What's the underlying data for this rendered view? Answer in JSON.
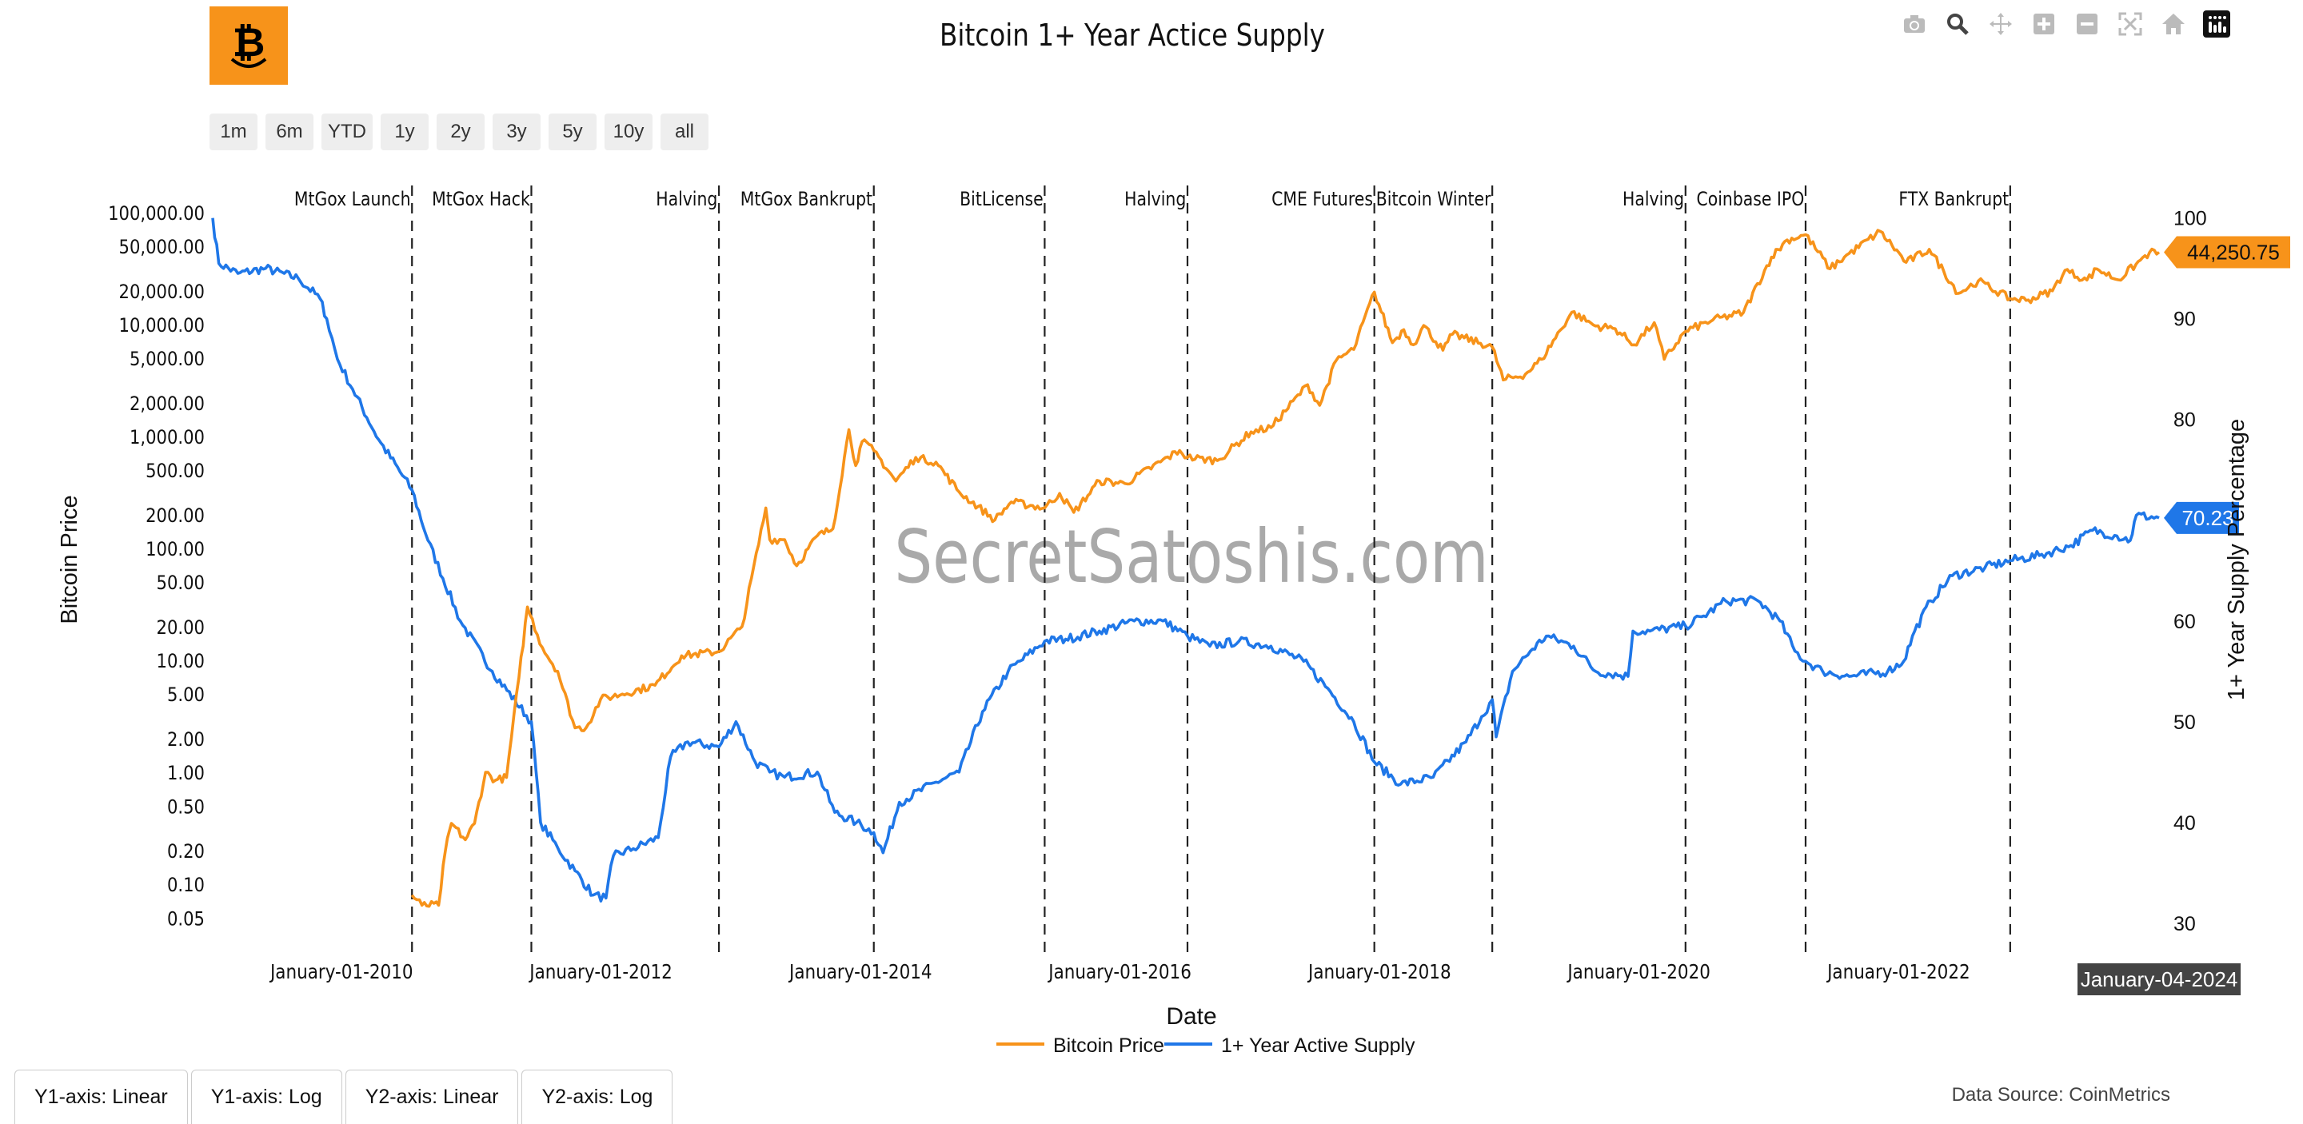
{
  "page": {
    "title": "Bitcoin 1+ Year Actice Supply",
    "logo_icon": "bitcoin-smile-logo-icon",
    "range_buttons": [
      "1m",
      "6m",
      "YTD",
      "1y",
      "2y",
      "3y",
      "5y",
      "10y",
      "all"
    ],
    "modebar_icons": [
      "camera-icon",
      "zoom-icon",
      "pan-icon",
      "zoom-in-icon",
      "zoom-out-icon",
      "autoscale-icon",
      "home-icon",
      "plotly-logo-icon"
    ],
    "axis_buttons": [
      "Y1-axis: Linear",
      "Y1-axis: Log",
      "Y2-axis: Linear",
      "Y2-axis: Log"
    ],
    "source": "Data Source: CoinMetrics",
    "watermark": "SecretSatoshis.com",
    "hover_date": "January-04-2024",
    "colors": {
      "price": "#f7931a",
      "supply": "#1f77e8",
      "logo": "#f7931a"
    }
  },
  "chart_data": {
    "type": "line",
    "title": "Bitcoin 1+ Year Actice Supply",
    "xlabel": "Date",
    "ylabel": "Bitcoin Price",
    "y2label": "1+ Year Supply Percentage",
    "x_ticks": [
      "January-01-2010",
      "January-01-2012",
      "January-01-2014",
      "January-01-2016",
      "January-01-2018",
      "January-01-2020",
      "January-01-2022"
    ],
    "y_ticks": [
      "100,000.00",
      "50,000.00",
      "20,000.00",
      "10,000.00",
      "5,000.00",
      "2,000.00",
      "1,000.00",
      "500.00",
      "200.00",
      "100.00",
      "50.00",
      "20.00",
      "10.00",
      "5.00",
      "2.00",
      "1.00",
      "0.50",
      "0.20",
      "0.10",
      "0.05"
    ],
    "y2_ticks": [
      "100",
      "90",
      "80",
      "70",
      "60",
      "50",
      "40",
      "30"
    ],
    "y_scale": "log",
    "ylim": [
      0.035,
      130000
    ],
    "y2lim": [
      28.8,
      101.8
    ],
    "xlim": [
      "2009-01-03",
      "2024-01-04"
    ],
    "grid": false,
    "legend_position": "bottom-center",
    "events": [
      {
        "label": "MtGox Launch",
        "date": "2010-07-18"
      },
      {
        "label": "MtGox Hack",
        "date": "2011-06-19"
      },
      {
        "label": "Halving",
        "date": "2012-11-28"
      },
      {
        "label": "MtGox Bankrupt",
        "date": "2014-02-07"
      },
      {
        "label": "BitLicense",
        "date": "2015-06-03"
      },
      {
        "label": "Halving",
        "date": "2016-07-09"
      },
      {
        "label": "CME Futures",
        "date": "2017-12-17"
      },
      {
        "label": "Bitcoin Winter",
        "date": "2018-11-14"
      },
      {
        "label": "Halving",
        "date": "2020-05-11"
      },
      {
        "label": "Coinbase IPO",
        "date": "2021-04-14"
      },
      {
        "label": "FTX Bankrupt",
        "date": "2022-11-11"
      }
    ],
    "series": [
      {
        "name": "Bitcoin Price",
        "axis": "y",
        "last_label": "44,250.75",
        "points": [
          [
            "2010-07-18",
            0.08
          ],
          [
            "2010-08-15",
            0.065
          ],
          [
            "2010-10-01",
            0.065
          ],
          [
            "2010-10-20",
            0.2
          ],
          [
            "2010-11-06",
            0.35
          ],
          [
            "2010-12-15",
            0.25
          ],
          [
            "2011-01-10",
            0.35
          ],
          [
            "2011-02-10",
            1.0
          ],
          [
            "2011-03-10",
            0.85
          ],
          [
            "2011-04-10",
            0.9
          ],
          [
            "2011-05-15",
            7
          ],
          [
            "2011-06-08",
            30
          ],
          [
            "2011-07-20",
            13
          ],
          [
            "2011-09-01",
            8
          ],
          [
            "2011-10-20",
            2.5
          ],
          [
            "2011-11-20",
            2.5
          ],
          [
            "2011-12-31",
            4.5
          ],
          [
            "2012-03-01",
            5
          ],
          [
            "2012-06-01",
            6
          ],
          [
            "2012-08-15",
            11
          ],
          [
            "2012-11-28",
            12
          ],
          [
            "2013-02-01",
            20
          ],
          [
            "2013-04-09",
            230
          ],
          [
            "2013-04-20",
            120
          ],
          [
            "2013-06-01",
            120
          ],
          [
            "2013-07-05",
            70
          ],
          [
            "2013-09-01",
            130
          ],
          [
            "2013-10-15",
            150
          ],
          [
            "2013-11-29",
            1150
          ],
          [
            "2013-12-18",
            550
          ],
          [
            "2014-01-05",
            900
          ],
          [
            "2014-02-07",
            750
          ],
          [
            "2014-04-10",
            400
          ],
          [
            "2014-06-05",
            650
          ],
          [
            "2014-08-01",
            590
          ],
          [
            "2014-10-05",
            320
          ],
          [
            "2015-01-14",
            180
          ],
          [
            "2015-03-01",
            260
          ],
          [
            "2015-06-03",
            230
          ],
          [
            "2015-07-15",
            310
          ],
          [
            "2015-08-24",
            210
          ],
          [
            "2015-11-04",
            400
          ],
          [
            "2016-01-15",
            380
          ],
          [
            "2016-06-17",
            750
          ],
          [
            "2016-07-09",
            650
          ],
          [
            "2016-10-01",
            610
          ],
          [
            "2017-01-04",
            1100
          ],
          [
            "2017-03-01",
            1200
          ],
          [
            "2017-06-12",
            2900
          ],
          [
            "2017-07-16",
            1900
          ],
          [
            "2017-09-01",
            4800
          ],
          [
            "2017-10-20",
            6000
          ],
          [
            "2017-12-17",
            19500
          ],
          [
            "2018-02-06",
            6900
          ],
          [
            "2018-03-10",
            9000
          ],
          [
            "2018-04-06",
            6600
          ],
          [
            "2018-05-05",
            9800
          ],
          [
            "2018-06-28",
            5900
          ],
          [
            "2018-07-25",
            8200
          ],
          [
            "2018-11-14",
            6300
          ],
          [
            "2018-12-15",
            3200
          ],
          [
            "2019-02-15",
            3600
          ],
          [
            "2019-04-02",
            4900
          ],
          [
            "2019-06-26",
            12900
          ],
          [
            "2019-09-01",
            9700
          ],
          [
            "2019-10-26",
            9200
          ],
          [
            "2019-12-18",
            6600
          ],
          [
            "2020-02-13",
            10400
          ],
          [
            "2020-03-12",
            4900
          ],
          [
            "2020-05-11",
            8700
          ],
          [
            "2020-07-27",
            11000
          ],
          [
            "2020-10-21",
            12800
          ],
          [
            "2021-01-08",
            40000
          ],
          [
            "2021-02-21",
            57000
          ],
          [
            "2021-04-14",
            63500
          ],
          [
            "2021-06-22",
            31500
          ],
          [
            "2021-08-01",
            40000
          ],
          [
            "2021-11-10",
            68000
          ],
          [
            "2022-01-22",
            36000
          ],
          [
            "2022-03-28",
            47000
          ],
          [
            "2022-06-18",
            19000
          ],
          [
            "2022-08-13",
            24500
          ],
          [
            "2022-11-11",
            17000
          ],
          [
            "2023-01-01",
            16600
          ],
          [
            "2023-03-10",
            20000
          ],
          [
            "2023-04-14",
            30500
          ],
          [
            "2023-06-15",
            25000
          ],
          [
            "2023-07-13",
            31400
          ],
          [
            "2023-09-11",
            25100
          ],
          [
            "2023-10-31",
            34500
          ],
          [
            "2023-12-08",
            44000
          ],
          [
            "2024-01-04",
            44250.75
          ]
        ]
      },
      {
        "name": "1+ Year Active Supply",
        "axis": "y2",
        "last_label": "70.23",
        "points": [
          [
            "2009-01-03",
            100
          ],
          [
            "2009-01-20",
            95.5
          ],
          [
            "2009-03-15",
            94.5
          ],
          [
            "2009-06-01",
            95
          ],
          [
            "2009-09-01",
            94
          ],
          [
            "2009-11-01",
            92
          ],
          [
            "2009-11-20",
            90
          ],
          [
            "2009-12-20",
            86
          ],
          [
            "2010-02-01",
            83
          ],
          [
            "2010-04-15",
            78
          ],
          [
            "2010-07-18",
            73
          ],
          [
            "2010-09-01",
            68
          ],
          [
            "2010-12-01",
            60
          ],
          [
            "2011-03-01",
            55
          ],
          [
            "2011-06-19",
            50
          ],
          [
            "2011-07-15",
            40
          ],
          [
            "2011-09-01",
            37.5
          ],
          [
            "2011-10-20",
            35.2
          ],
          [
            "2011-12-10",
            32.8
          ],
          [
            "2012-01-15",
            32.5
          ],
          [
            "2012-02-05",
            36.7
          ],
          [
            "2012-04-01",
            37.4
          ],
          [
            "2012-06-10",
            38.5
          ],
          [
            "2012-07-15",
            46.5
          ],
          [
            "2012-09-01",
            48
          ],
          [
            "2012-11-28",
            47.5
          ],
          [
            "2013-01-15",
            50
          ],
          [
            "2013-03-10",
            46
          ],
          [
            "2013-04-20",
            45
          ],
          [
            "2013-06-01",
            44.5
          ],
          [
            "2013-09-01",
            45
          ],
          [
            "2013-10-20",
            41
          ],
          [
            "2013-12-20",
            40
          ],
          [
            "2014-02-07",
            39
          ],
          [
            "2014-03-05",
            37
          ],
          [
            "2014-04-20",
            42
          ],
          [
            "2014-08-01",
            44
          ],
          [
            "2014-10-05",
            45
          ],
          [
            "2014-12-10",
            51
          ],
          [
            "2015-02-20",
            55
          ],
          [
            "2015-06-03",
            58
          ],
          [
            "2015-08-01",
            58.2
          ],
          [
            "2015-11-04",
            59
          ],
          [
            "2016-02-10",
            60
          ],
          [
            "2016-05-01",
            60
          ],
          [
            "2016-07-09",
            58.5
          ],
          [
            "2016-09-10",
            57.5
          ],
          [
            "2016-12-01",
            58
          ],
          [
            "2017-03-01",
            57.5
          ],
          [
            "2017-06-01",
            56
          ],
          [
            "2017-08-15",
            53
          ],
          [
            "2017-10-20",
            50
          ],
          [
            "2017-12-17",
            46
          ],
          [
            "2018-03-01",
            43.8
          ],
          [
            "2018-06-01",
            44.5
          ],
          [
            "2018-09-01",
            48
          ],
          [
            "2018-10-15",
            50.5
          ],
          [
            "2018-11-14",
            52.2
          ],
          [
            "2018-11-25",
            48.5
          ],
          [
            "2019-01-10",
            55
          ],
          [
            "2019-03-01",
            57
          ],
          [
            "2019-04-15",
            58.5
          ],
          [
            "2019-07-01",
            57.5
          ],
          [
            "2019-09-01",
            55
          ],
          [
            "2019-12-01",
            54.5
          ],
          [
            "2019-12-15",
            59
          ],
          [
            "2020-02-01",
            59
          ],
          [
            "2020-05-11",
            59.5
          ],
          [
            "2020-07-01",
            60.5
          ],
          [
            "2020-09-01",
            62
          ],
          [
            "2020-12-01",
            62
          ],
          [
            "2021-02-01",
            60
          ],
          [
            "2021-03-15",
            57
          ],
          [
            "2021-04-14",
            56
          ],
          [
            "2021-06-01",
            55
          ],
          [
            "2021-08-15",
            54.5
          ],
          [
            "2021-12-01",
            55
          ],
          [
            "2022-01-15",
            56
          ],
          [
            "2022-02-15",
            59
          ],
          [
            "2022-04-01",
            62
          ],
          [
            "2022-06-01",
            64.5
          ],
          [
            "2022-09-01",
            65.3
          ],
          [
            "2022-11-11",
            66
          ],
          [
            "2023-02-01",
            66.5
          ],
          [
            "2023-05-01",
            67.5
          ],
          [
            "2023-07-01",
            69
          ],
          [
            "2023-09-01",
            68.5
          ],
          [
            "2023-10-15",
            68
          ],
          [
            "2023-11-01",
            70.5
          ],
          [
            "2024-01-04",
            70.23
          ]
        ]
      }
    ]
  }
}
